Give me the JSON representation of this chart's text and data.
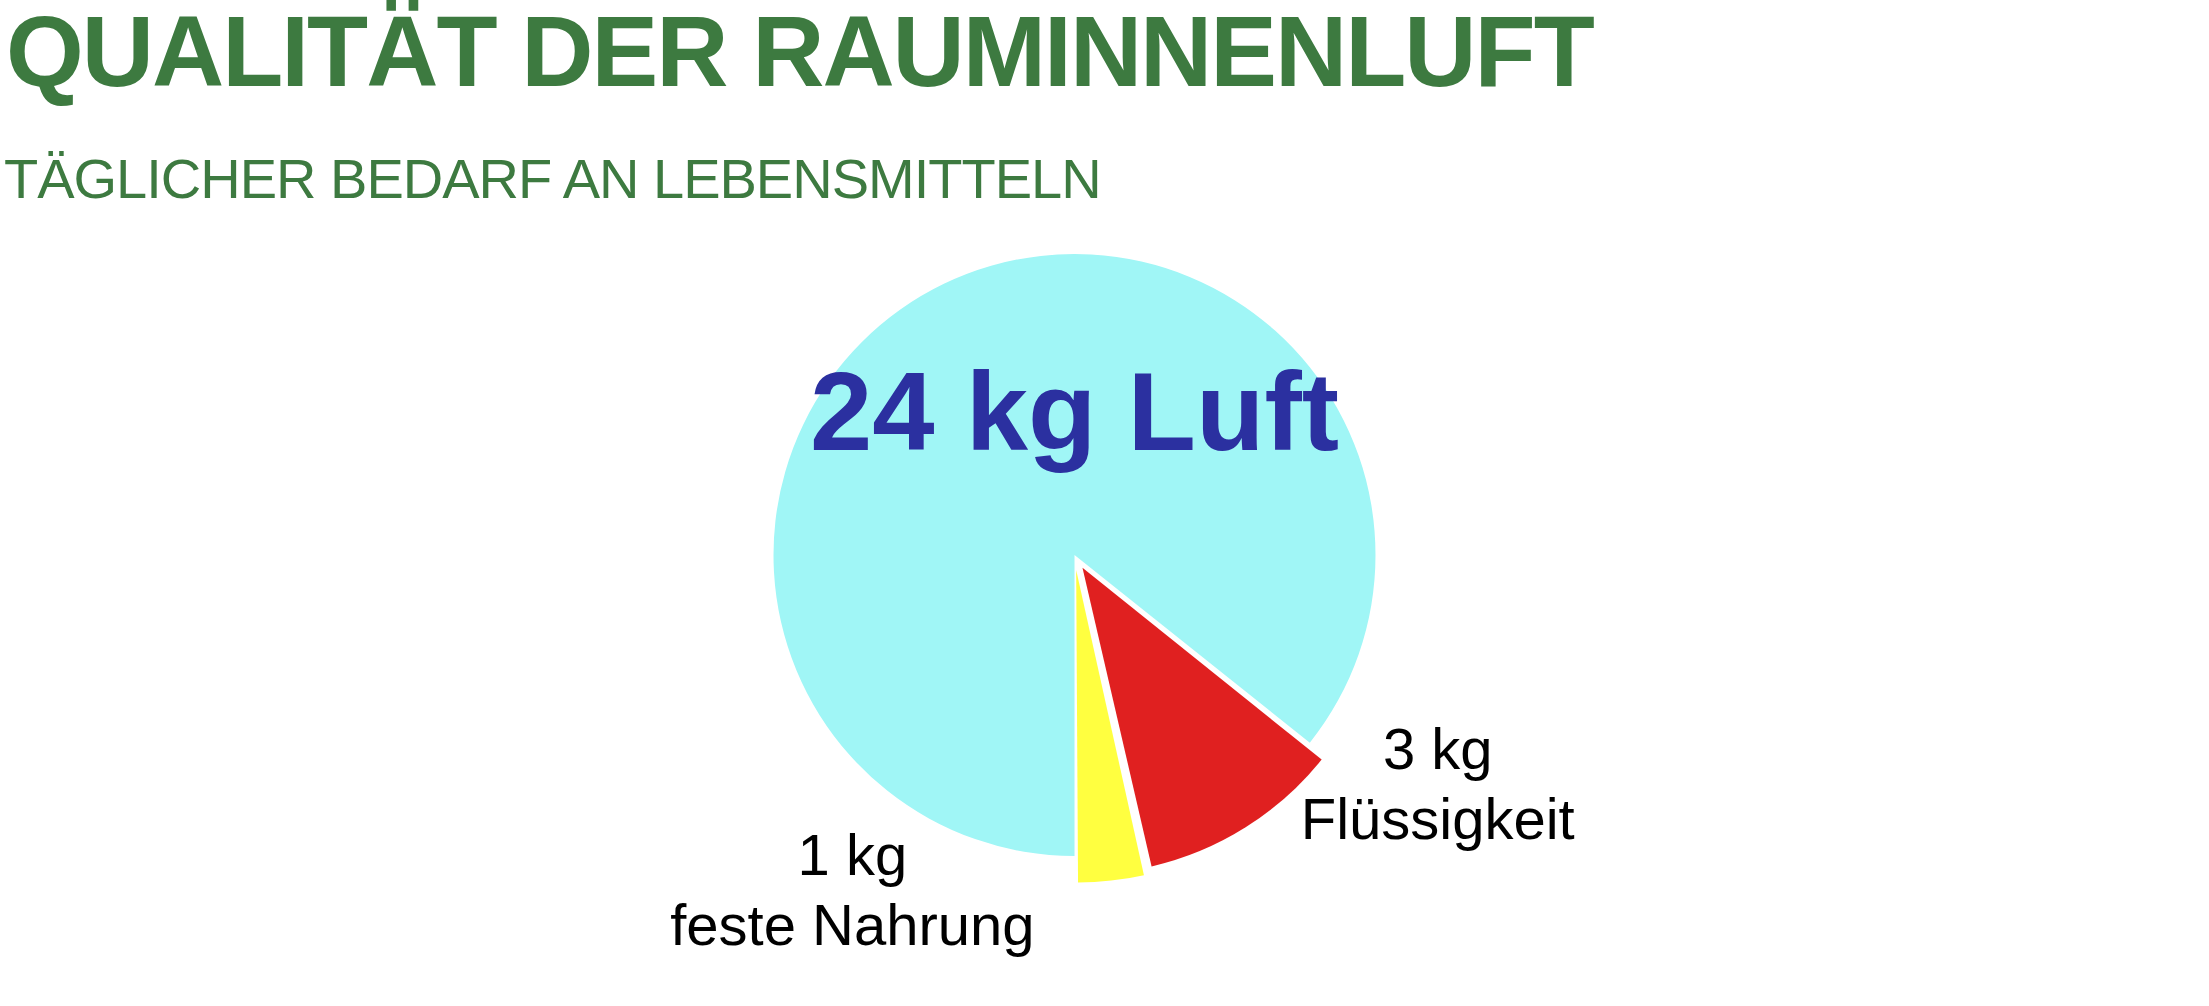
{
  "chart_data": {
    "type": "pie",
    "title": "QUALITÄT DER RAUMINNENLUFT",
    "subtitle": "TÄGLICHER BEDARF AN LEBENSMITTELN",
    "categories": [
      "Luft",
      "Flüssigkeit",
      "feste Nahrung"
    ],
    "values": [
      24,
      3,
      1
    ],
    "colors": [
      "#a0f6f6",
      "#e02020",
      "#ffff40"
    ],
    "value_labels": [
      "24 kg",
      "3 kg",
      "1 kg"
    ]
  }
}
